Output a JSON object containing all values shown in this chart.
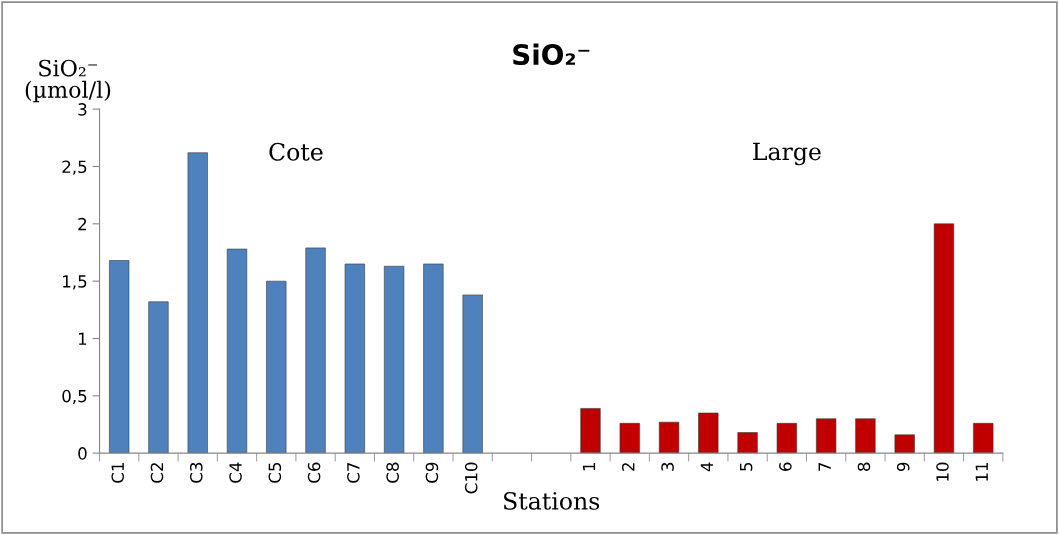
{
  "chart_data": {
    "type": "bar",
    "title": "SiO₂⁻",
    "ylabel": "SiO₂⁻\n(µmol/l)",
    "xlabel": "Stations",
    "categories": [
      "C1",
      "C2",
      "C3",
      "C4",
      "C5",
      "C6",
      "C7",
      "C8",
      "C9",
      "C10",
      null,
      null,
      "1",
      "2",
      "3",
      "4",
      "5",
      "6",
      "7",
      "8",
      "9",
      "10",
      "11"
    ],
    "series": [
      {
        "color": "#4f81bd",
        "values": [
          1.68,
          1.32,
          2.62,
          1.78,
          1.5,
          1.79,
          1.65,
          1.63,
          1.65,
          1.38,
          null,
          null,
          null,
          null,
          null,
          null,
          null,
          null,
          null,
          null,
          null,
          null,
          null
        ]
      },
      {
        "color": "#c00000",
        "values": [
          null,
          null,
          null,
          null,
          null,
          null,
          null,
          null,
          null,
          null,
          null,
          null,
          0.39,
          0.26,
          0.27,
          0.35,
          0.18,
          0.26,
          0.3,
          0.3,
          0.16,
          2.0,
          0.26
        ]
      }
    ],
    "annotations": [
      "Cote",
      "Large"
    ],
    "ylim": [
      0,
      3
    ],
    "yticks": [
      0,
      {
        "value": 0.5,
        "label": "0,5"
      },
      1,
      {
        "value": 1.5,
        "label": "1,5"
      },
      2,
      {
        "value": 2.5,
        "label": "2,5"
      },
      3
    ],
    "grid": false,
    "legend": false
  }
}
